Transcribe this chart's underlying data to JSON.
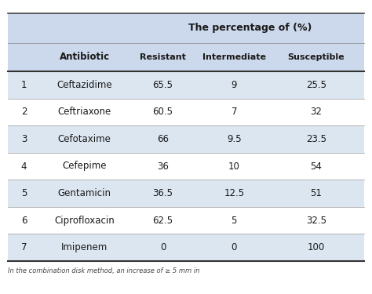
{
  "title_row1": "The percentage of (%)",
  "col_header1": "Antibiotic",
  "col_header2": "Resistant",
  "col_header3": "Intermediate",
  "col_header4": "Susceptible",
  "rows": [
    [
      "1",
      "Ceftazidime",
      "65.5",
      "9",
      "25.5"
    ],
    [
      "2",
      "Ceftriaxone",
      "60.5",
      "7",
      "32"
    ],
    [
      "3",
      "Cefotaxime",
      "66",
      "9.5",
      "23.5"
    ],
    [
      "4",
      "Cefepime",
      "36",
      "10",
      "54"
    ],
    [
      "5",
      "Gentamicin",
      "36.5",
      "12.5",
      "51"
    ],
    [
      "6",
      "Ciprofloxacin",
      "62.5",
      "5",
      "32.5"
    ],
    [
      "7",
      "Imipenem",
      "0",
      "0",
      "100"
    ]
  ],
  "header_bg": "#ccd8eb",
  "row_bg_odd": "#dce6f1",
  "row_bg_even": "#ffffff",
  "text_color": "#1a1a1a",
  "footer_text": "In the combination disk method, an increase of ≥ 5 mm in",
  "background_color": "#ffffff",
  "top_margin_color": "#ffffff"
}
